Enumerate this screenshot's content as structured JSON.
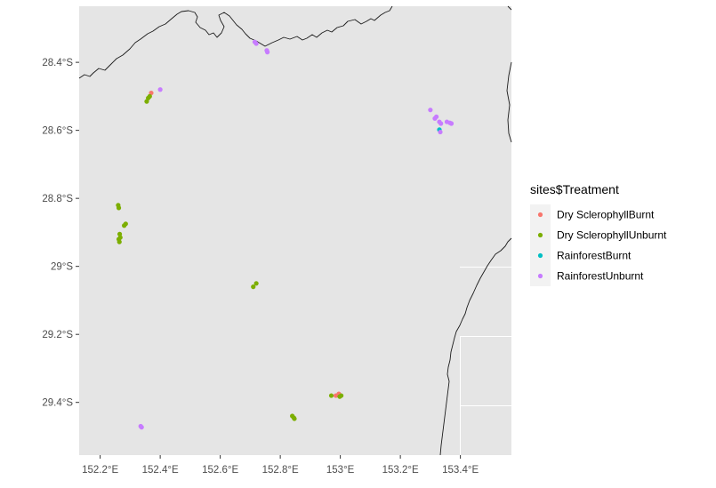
{
  "chart_data": {
    "type": "scatter",
    "title": "",
    "xlabel": "",
    "ylabel": "",
    "xlim": [
      152.13,
      153.57
    ],
    "ylim": [
      -29.555,
      -28.235
    ],
    "x_ticks": [
      152.2,
      152.4,
      152.6,
      152.8,
      153.0,
      153.2,
      153.4
    ],
    "x_tick_labels": [
      "152.2°E",
      "152.4°E",
      "152.6°E",
      "152.8°E",
      "153°E",
      "153.2°E",
      "153.4°E"
    ],
    "y_ticks": [
      -28.4,
      -28.6,
      -28.8,
      -29.0,
      -29.2,
      -29.4
    ],
    "y_tick_labels": [
      "28.4°S",
      "28.6°S",
      "28.8°S",
      "29°S",
      "29.2°S",
      "29.4°S"
    ],
    "grid": true,
    "legend_position": "right",
    "legend_title": "sites$Treatment",
    "series": [
      {
        "name": "Dry SclerophyllBurnt",
        "color": "#F8766D",
        "points": [
          [
            152.37,
            -28.49
          ],
          [
            152.995,
            -29.375
          ],
          [
            152.985,
            -29.38
          ]
        ]
      },
      {
        "name": "Dry SclerophyllUnburnt",
        "color": "#7CAE00",
        "points": [
          [
            152.355,
            -28.515
          ],
          [
            152.36,
            -28.505
          ],
          [
            152.365,
            -28.5
          ],
          [
            152.26,
            -28.82
          ],
          [
            152.262,
            -28.828
          ],
          [
            152.285,
            -28.875
          ],
          [
            152.28,
            -28.88
          ],
          [
            152.265,
            -28.905
          ],
          [
            152.267,
            -28.915
          ],
          [
            152.262,
            -28.92
          ],
          [
            152.264,
            -28.928
          ],
          [
            152.72,
            -29.05
          ],
          [
            152.71,
            -29.06
          ],
          [
            152.84,
            -29.44
          ],
          [
            152.845,
            -29.445
          ],
          [
            152.847,
            -29.448
          ],
          [
            152.97,
            -29.38
          ],
          [
            152.998,
            -29.383
          ],
          [
            153.003,
            -29.38
          ]
        ]
      },
      {
        "name": "RainforestBurnt",
        "color": "#00BFC4",
        "points": [
          [
            153.33,
            -28.598
          ]
        ]
      },
      {
        "name": "RainforestUnburnt",
        "color": "#C77CFF",
        "points": [
          [
            152.715,
            -28.34
          ],
          [
            152.72,
            -28.345
          ],
          [
            152.755,
            -28.365
          ],
          [
            152.757,
            -28.37
          ],
          [
            152.4,
            -28.48
          ],
          [
            153.3,
            -28.54
          ],
          [
            153.315,
            -28.565
          ],
          [
            153.32,
            -28.56
          ],
          [
            153.33,
            -28.575
          ],
          [
            153.335,
            -28.58
          ],
          [
            153.355,
            -28.575
          ],
          [
            153.365,
            -28.578
          ],
          [
            153.37,
            -28.58
          ],
          [
            153.333,
            -28.605
          ],
          [
            152.335,
            -29.47
          ],
          [
            152.338,
            -29.473
          ]
        ]
      }
    ]
  }
}
